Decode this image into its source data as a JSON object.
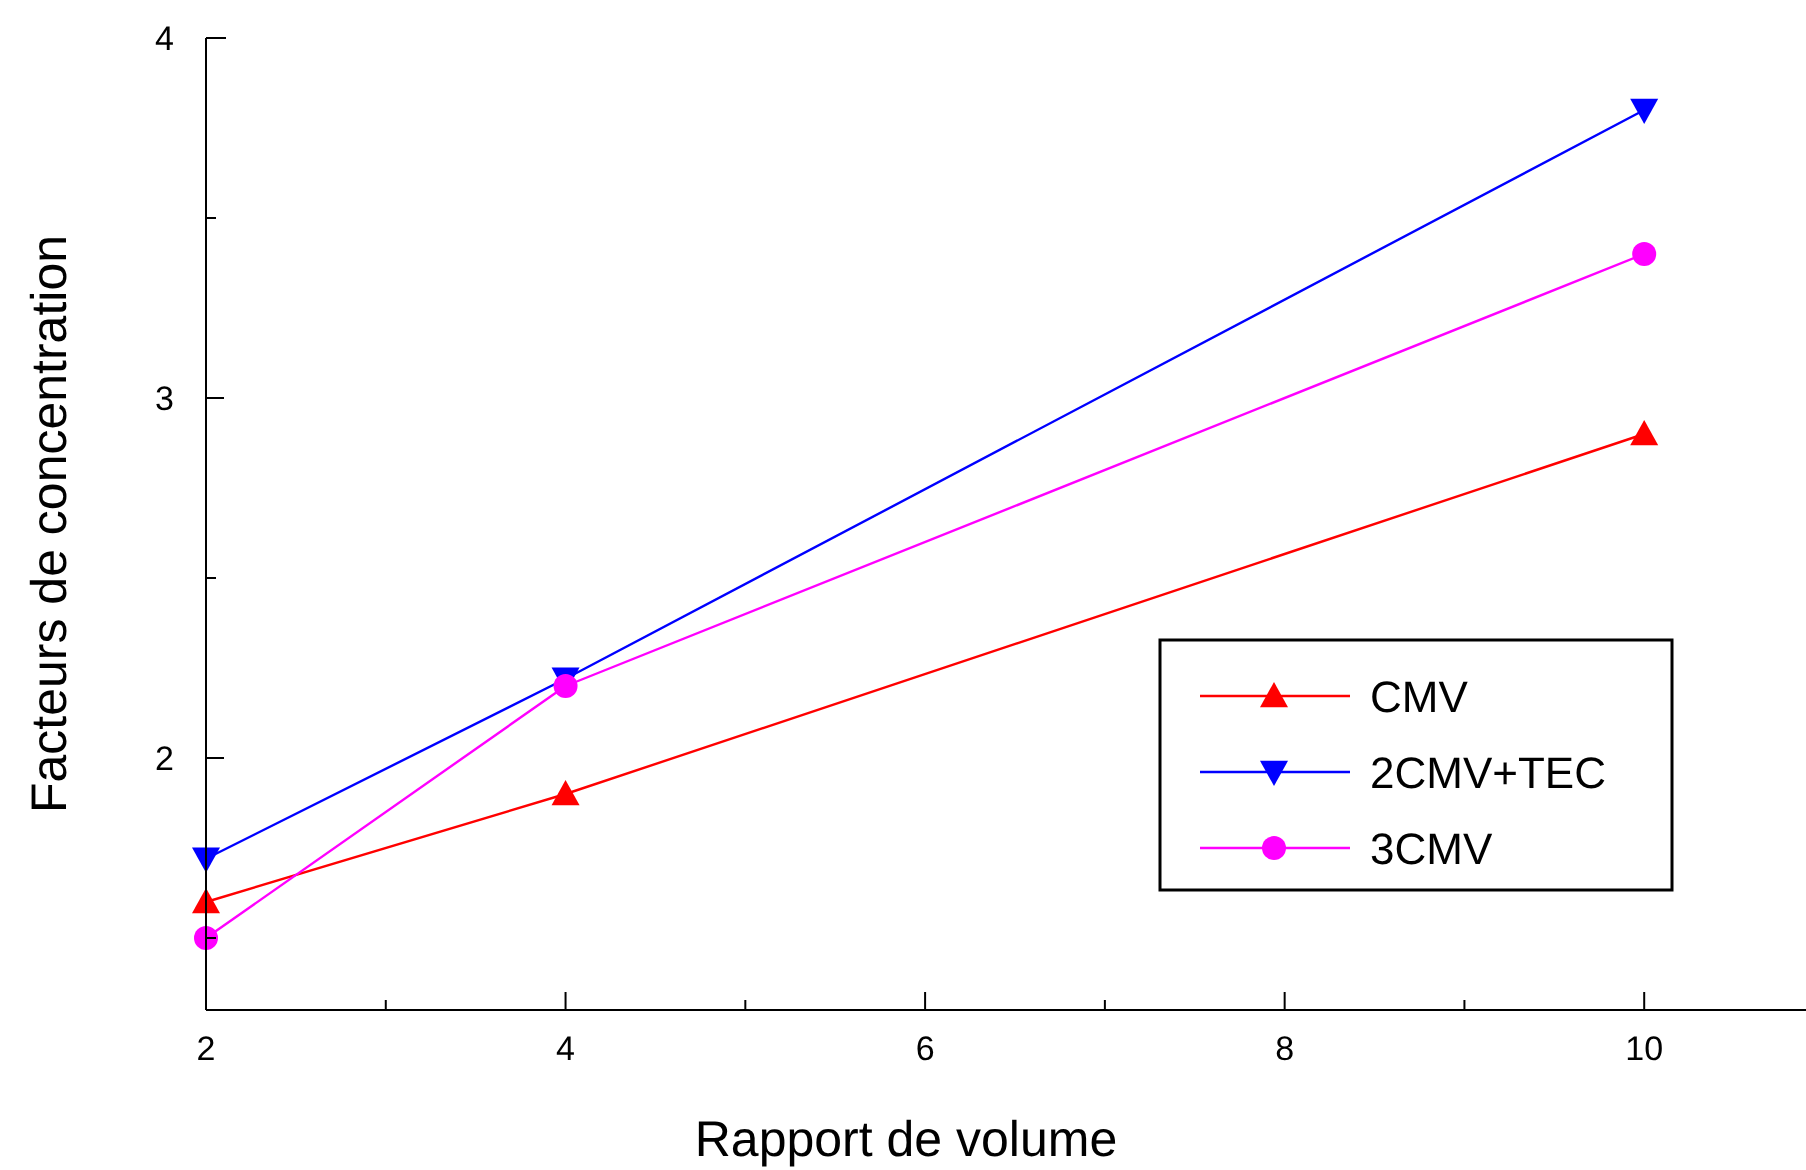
{
  "chart_data": {
    "type": "line",
    "xlabel": "Rapport de volume",
    "ylabel": "Facteurs de concentration",
    "x": [
      2,
      4,
      10
    ],
    "series": [
      {
        "name": "CMV",
        "color": "#ff0000",
        "values": [
          1.6,
          1.9,
          2.9
        ],
        "marker": "triangle"
      },
      {
        "name": "2CMV+TEC",
        "color": "#0000ff",
        "values": [
          1.72,
          2.22,
          3.8
        ],
        "marker": "triangle-down"
      },
      {
        "name": "3CMV",
        "color": "#ff00ff",
        "values": [
          1.5,
          2.2,
          3.4
        ],
        "marker": "circle"
      }
    ],
    "xlim": [
      2,
      10.9
    ],
    "xticks": [
      2,
      {
        "value": 3,
        "label": null
      },
      4,
      {
        "value": 5,
        "label": null
      },
      6,
      {
        "value": 7,
        "label": null
      },
      8,
      {
        "value": 9,
        "label": null
      },
      10
    ],
    "ylim": [
      1.3,
      4
    ],
    "yticks": [
      {
        "value": 1.5,
        "label": null
      },
      2,
      {
        "value": 2.5,
        "label": null
      },
      3,
      {
        "value": 3.5,
        "label": null
      },
      4
    ],
    "legend": "right",
    "grid": false,
    "line_style": "solid"
  }
}
